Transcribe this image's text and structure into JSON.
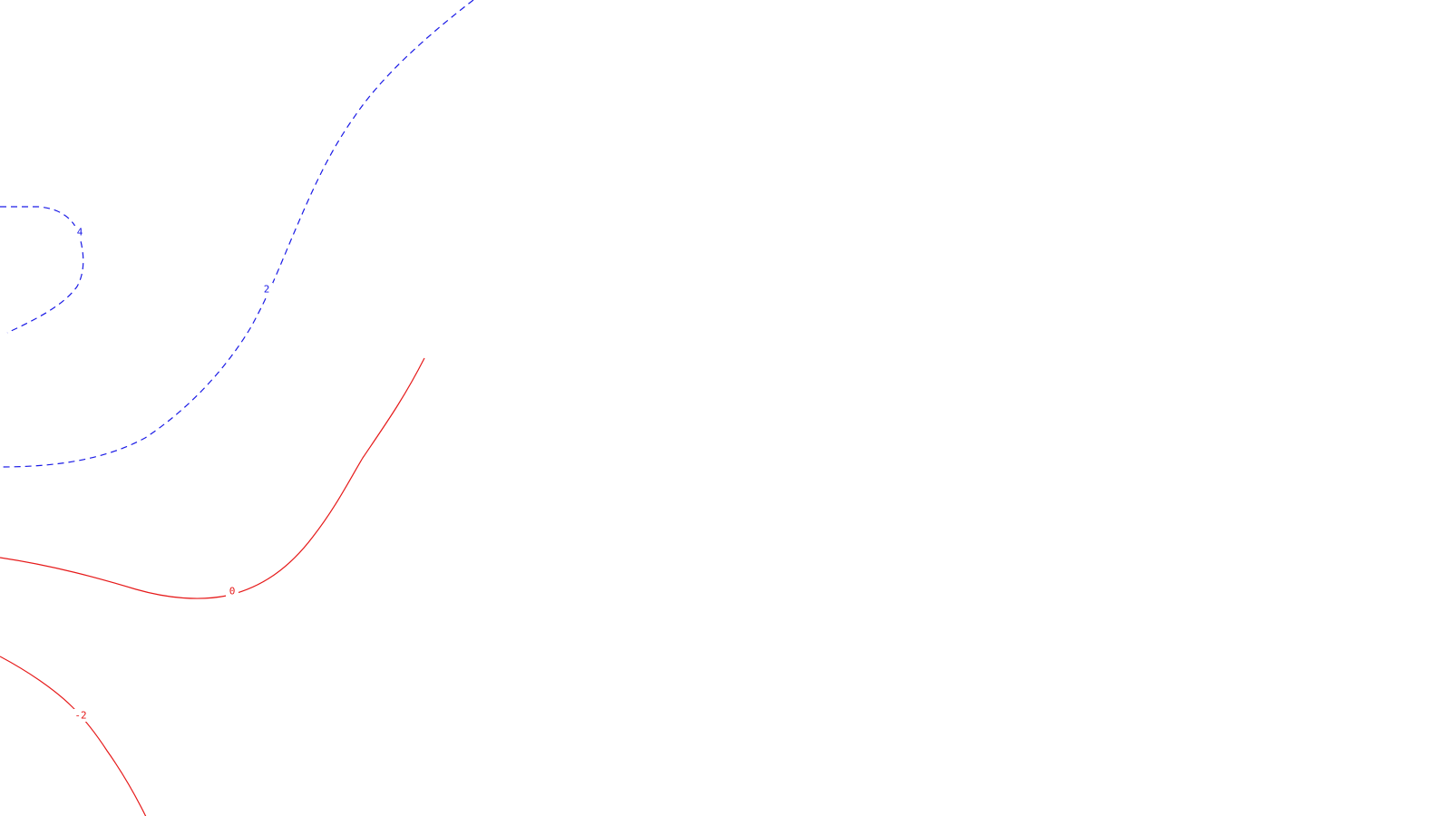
{
  "plot": {
    "type": "contour",
    "grid": false,
    "colors": {
      "positive": "#1a1ae6",
      "zero_and_negative": "#e61a1a",
      "background": "#ffffff"
    },
    "contours": [
      {
        "id": "c4",
        "level": 4,
        "label": "4",
        "color": "#1a1ae6",
        "style": "dashed"
      },
      {
        "id": "c2",
        "level": 2,
        "label": "2",
        "color": "#1a1ae6",
        "style": "dashed"
      },
      {
        "id": "c0",
        "level": 0,
        "label": "0",
        "color": "#e61a1a",
        "style": "solid"
      },
      {
        "id": "cm2",
        "level": -2,
        "label": "-2",
        "color": "#e61a1a",
        "style": "solid"
      }
    ]
  }
}
